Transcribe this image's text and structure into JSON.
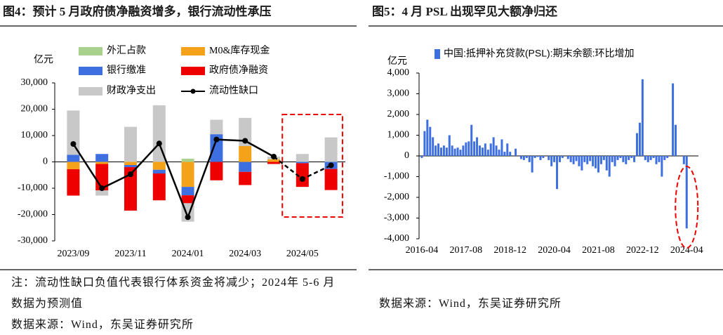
{
  "chart_data": [
    {
      "type": "bar",
      "title": "图4：预计 5 月政府债净融资增多，银行流动性承压",
      "y_label": "亿元",
      "categories": [
        "2023/09",
        null,
        "2023/11",
        null,
        "2024/01",
        null,
        "2024/03",
        null,
        "2024/05",
        null
      ],
      "series": [
        {
          "name": "外汇占款",
          "color": "#a9d18e",
          "values": [
            0,
            0,
            0,
            0,
            1200,
            0,
            0,
            0,
            0,
            0
          ]
        },
        {
          "name": "M0&库存现金",
          "color": "#f5a21b",
          "values": [
            -2800,
            -800,
            -1200,
            -3000,
            -9500,
            0,
            6000,
            1000,
            0,
            0
          ]
        },
        {
          "name": "银行缴准",
          "color": "#3d6fe0",
          "values": [
            2700,
            3000,
            -800,
            -1400,
            -3200,
            10500,
            -3800,
            0,
            -500,
            -2700
          ]
        },
        {
          "name": "政府债净融资",
          "color": "#ee0000",
          "values": [
            -10000,
            -10000,
            -16500,
            -10200,
            -3000,
            -7000,
            -5000,
            -800,
            -9000,
            -8000
          ]
        },
        {
          "name": "财政净支出",
          "color": "#c8c8c8",
          "values": [
            16800,
            -2000,
            13300,
            21500,
            -7000,
            5500,
            10700,
            1000,
            3000,
            9300
          ]
        },
        {
          "name": "流动性缺口",
          "color": "#000000",
          "type": "line",
          "dashed_from": 7,
          "values": [
            6800,
            -10000,
            -4700,
            7000,
            -21000,
            8500,
            8000,
            2000,
            -6500,
            -1300
          ]
        }
      ],
      "ylim": [
        -30000,
        30000
      ],
      "yticks": [
        {
          "value": -30000,
          "label": "-30,000"
        },
        {
          "value": -20000,
          "label": "-20,000"
        },
        {
          "value": -10000,
          "label": "-10,000"
        },
        0,
        {
          "value": 10000,
          "label": "10,000"
        },
        {
          "value": 20000,
          "label": "20,000"
        },
        {
          "value": 30000,
          "label": "30,000"
        }
      ],
      "note": "注：流动性缺口负值代表银行体系资金将减少；2024年 5-6 月数据为预测值",
      "source": "数据来源：Wind，东吴证券研究所"
    },
    {
      "type": "bar",
      "title": "图5：4 月 PSL 出现罕见大额净归还",
      "y_label": "亿元",
      "categories": [
        "2016-04",
        null,
        null,
        null,
        null,
        null,
        null,
        null,
        null,
        null,
        null,
        null,
        null,
        null,
        null,
        null,
        "2017-08",
        null,
        null,
        null,
        null,
        null,
        null,
        null,
        null,
        null,
        null,
        null,
        null,
        null,
        null,
        null,
        "2018-12",
        null,
        null,
        null,
        null,
        null,
        null,
        null,
        null,
        null,
        null,
        null,
        null,
        null,
        null,
        null,
        "2020-04",
        null,
        null,
        null,
        null,
        null,
        null,
        null,
        null,
        null,
        null,
        null,
        null,
        null,
        null,
        null,
        "2021-08",
        null,
        null,
        null,
        null,
        null,
        null,
        null,
        null,
        null,
        null,
        null,
        null,
        null,
        null,
        null,
        "2022-12",
        null,
        null,
        null,
        null,
        null,
        null,
        null,
        null,
        null,
        null,
        null,
        null,
        null,
        null,
        null,
        "2024-04"
      ],
      "series": [
        {
          "name": "中国:抵押补充贷款(PSL):期末余额:环比增加",
          "color": "#3d6fe0",
          "values": [
            -100,
            1200,
            1750,
            1400,
            900,
            500,
            600,
            400,
            500,
            400,
            1000,
            500,
            350,
            400,
            300,
            500,
            650,
            700,
            1500,
            700,
            900,
            500,
            400,
            600,
            300,
            600,
            900,
            500,
            300,
            800,
            200,
            600,
            200,
            0,
            350,
            0,
            -150,
            -200,
            -100,
            -300,
            -800,
            -100,
            -50,
            -200,
            -100,
            0,
            -200,
            -500,
            -300,
            -1600,
            -300,
            -100,
            0,
            -150,
            -300,
            -400,
            -250,
            -500,
            -700,
            -300,
            -400,
            -250,
            -500,
            -600,
            -800,
            -400,
            -200,
            -700,
            -1000,
            -300,
            -500,
            -200,
            -100,
            -300,
            -400,
            -200,
            -100,
            -300,
            1100,
            1600,
            3700,
            -200,
            -300,
            -200,
            -100,
            -400,
            -300,
            -1000,
            -200,
            -100,
            0,
            3500,
            1500,
            0,
            0,
            -400,
            -3500
          ]
        }
      ],
      "ylim": [
        -4000,
        4000
      ],
      "yticks": [
        {
          "value": -4000,
          "label": "-4,000"
        },
        {
          "value": -3000,
          "label": "-3,000"
        },
        {
          "value": -2000,
          "label": "-2,000"
        },
        {
          "value": -1000,
          "label": "-1,000"
        },
        0,
        {
          "value": 1000,
          "label": "1,000"
        },
        {
          "value": 2000,
          "label": "2,000"
        },
        {
          "value": 3000,
          "label": "3,000"
        },
        {
          "value": 4000,
          "label": "4,000"
        }
      ],
      "source": "数据来源：Wind，东吴证券研究所"
    }
  ]
}
